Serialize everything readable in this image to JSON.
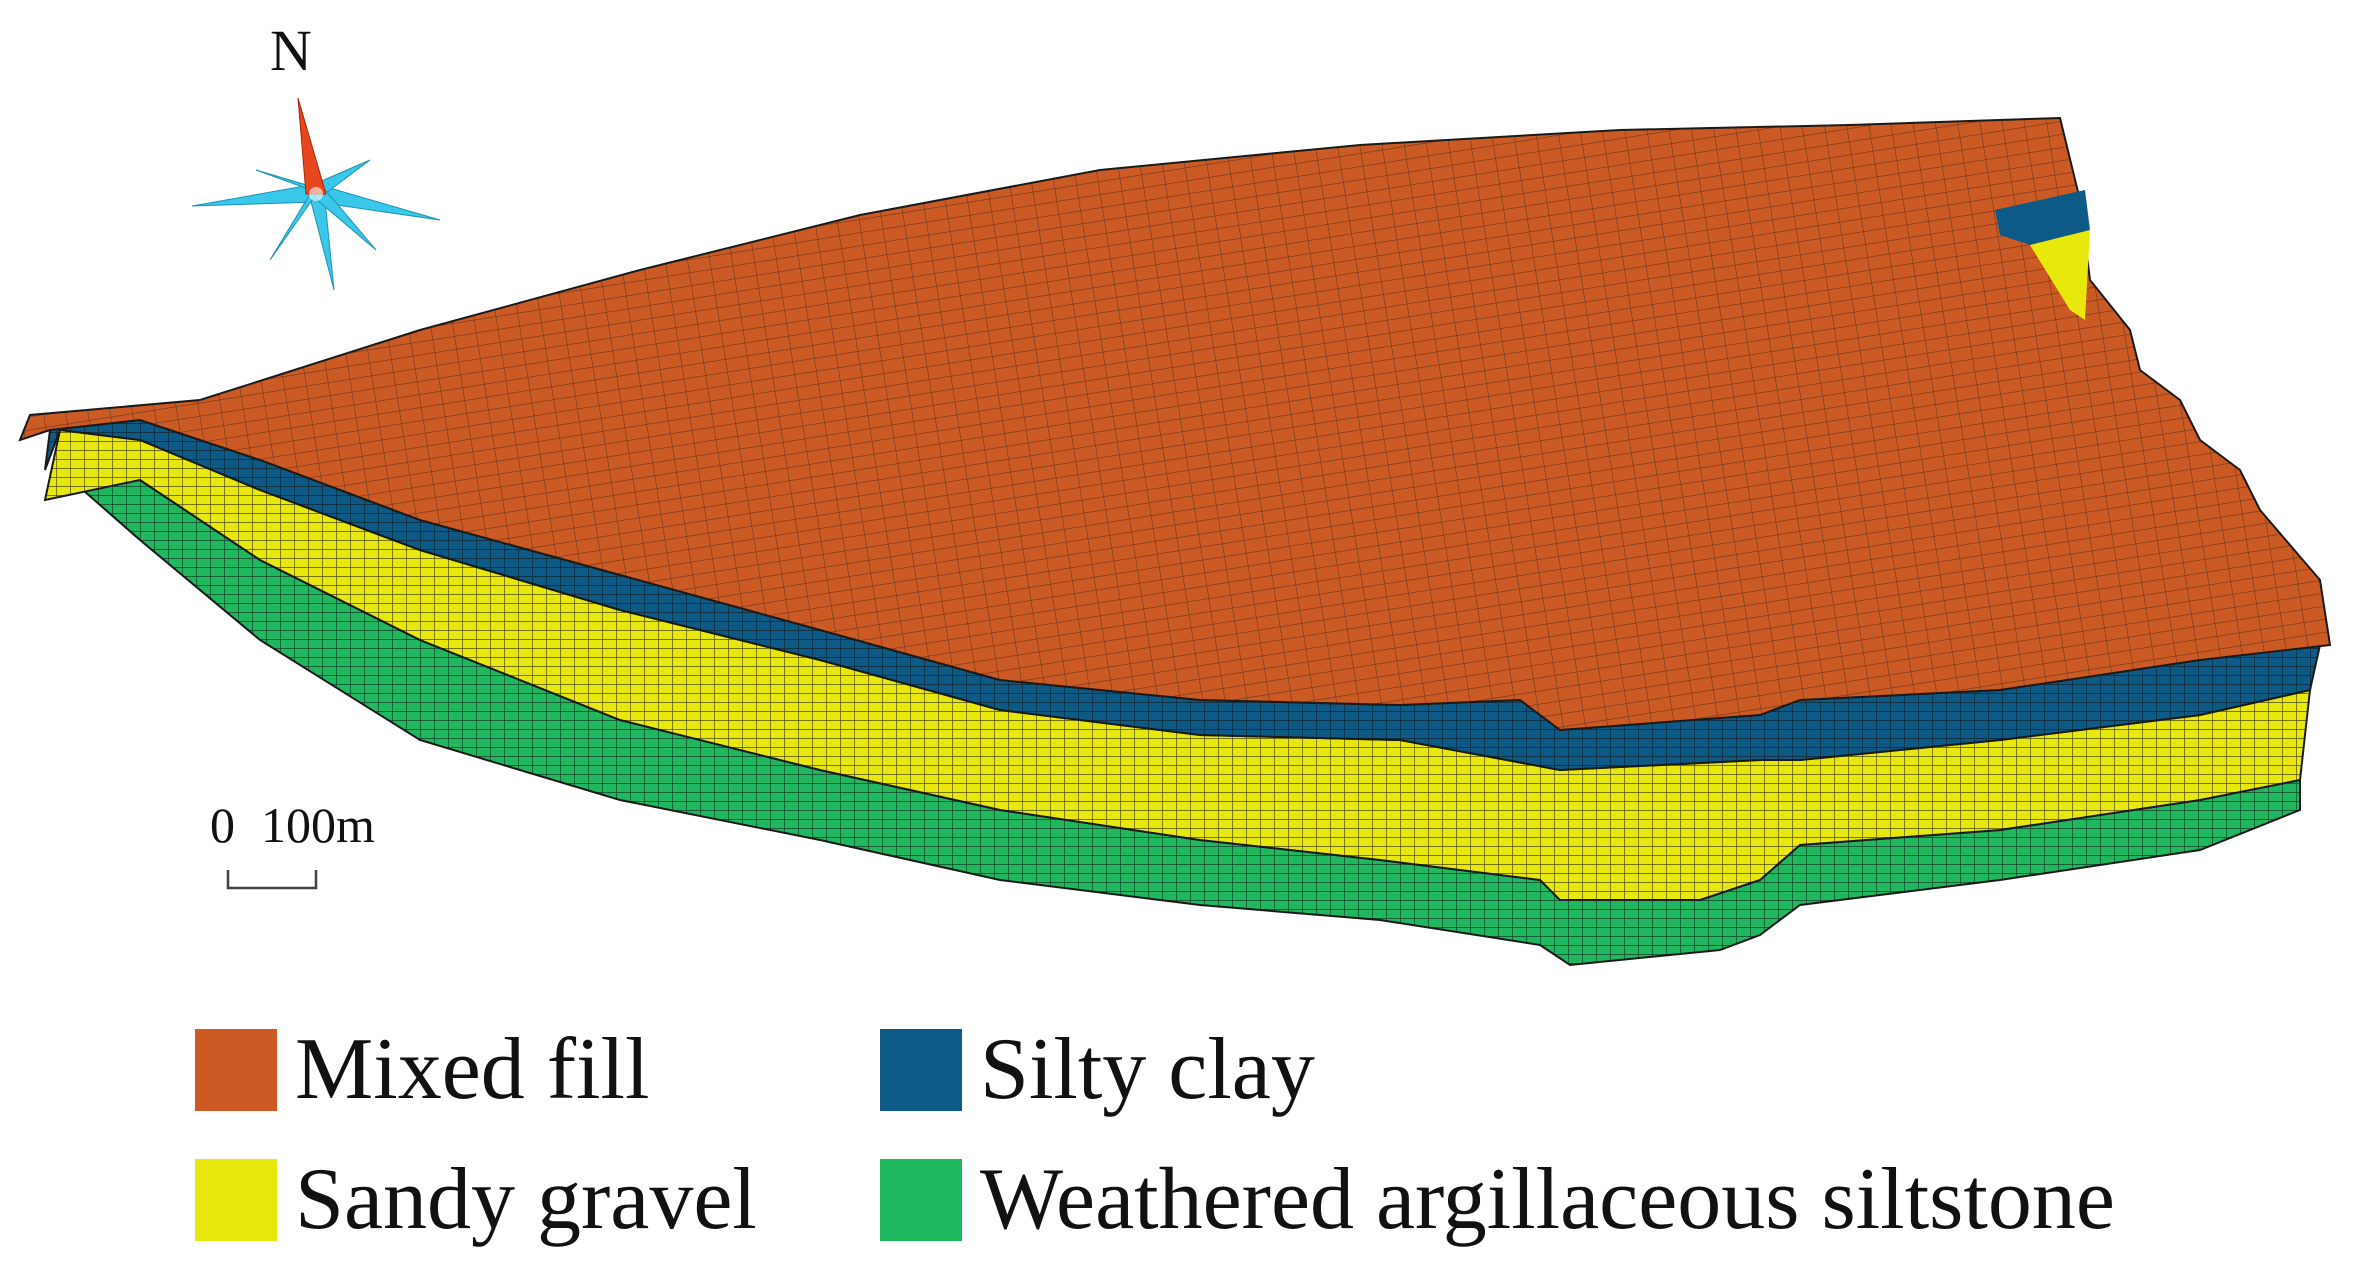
{
  "compass": {
    "north_label": "N",
    "icon": "compass-rose-icon",
    "needle_color": "#e8461c",
    "rose_color": "#39c7ea"
  },
  "scale_bar": {
    "start_label": "0",
    "end_label": "100m"
  },
  "model": {
    "grid_line_color": "#1a1a1a",
    "layers": [
      {
        "name": "Mixed fill",
        "color": "#cc5a24"
      },
      {
        "name": "Silty clay",
        "color": "#0d5a86"
      },
      {
        "name": "Sandy gravel",
        "color": "#e8e80c"
      },
      {
        "name": "Weathered argillaceous siltstone",
        "color": "#1fb85f"
      }
    ]
  },
  "legend": {
    "items": [
      {
        "label": "Mixed fill",
        "color": "#cc5a24"
      },
      {
        "label": "Silty clay",
        "color": "#0d5a86"
      },
      {
        "label": "Sandy gravel",
        "color": "#e8e80c"
      },
      {
        "label": "Weathered argillaceous siltstone",
        "color": "#1fb85f"
      }
    ]
  }
}
